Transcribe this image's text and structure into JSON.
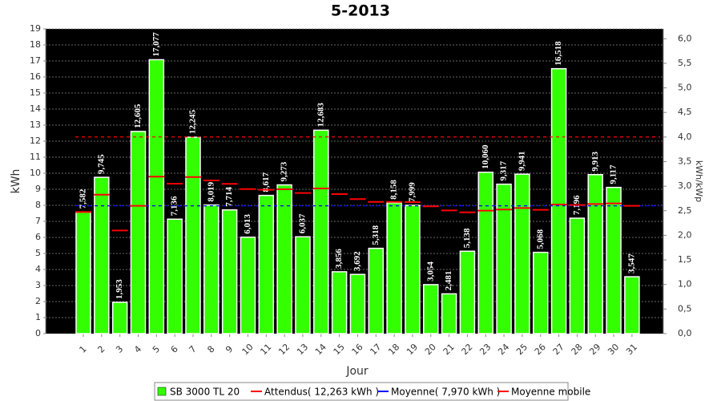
{
  "chart_data": {
    "type": "bar",
    "title": "5-2013",
    "x_label": "Jour",
    "y_label": "kWh",
    "y2_label": "kWh/kWp",
    "categories": [
      "1",
      "2",
      "3",
      "4",
      "5",
      "6",
      "7",
      "8",
      "9",
      "10",
      "11",
      "12",
      "13",
      "14",
      "15",
      "16",
      "17",
      "18",
      "19",
      "20",
      "21",
      "22",
      "23",
      "24",
      "25",
      "26",
      "27",
      "28",
      "29",
      "30",
      "31"
    ],
    "series": [
      {
        "name": "SB 3000 TL 20",
        "color": "#33ff00",
        "values": [
          7.582,
          9.745,
          1.953,
          12.605,
          17.077,
          7.136,
          12.245,
          8.019,
          7.714,
          6.013,
          8.617,
          9.273,
          6.037,
          12.683,
          3.856,
          3.692,
          5.318,
          8.158,
          7.999,
          3.054,
          2.481,
          5.138,
          10.06,
          9.317,
          9.941,
          5.068,
          16.518,
          7.196,
          9.913,
          9.117,
          3.547
        ],
        "value_labels": [
          "7,582",
          "9,745",
          "1,953",
          "12,605",
          "17,077",
          "7,136",
          "12,245",
          "8,019",
          "7,714",
          "6,013",
          "8,617",
          "9,273",
          "6,037",
          "12,683",
          "3,856",
          "3,692",
          "5,318",
          "8,158",
          "7,999",
          "3,054",
          "2,481",
          "5,138",
          "10,060",
          "9,317",
          "9,941",
          "5,068",
          "16,518",
          "7,196",
          "9,913",
          "9,117",
          "3,547"
        ]
      },
      {
        "name": "Attendus( 12,263 kWh )",
        "color": "#ff0000",
        "value": 12.263
      },
      {
        "name": "Moyenne( 7,970 kWh )",
        "color": "#0000ff",
        "value": 7.97
      },
      {
        "name": "Moyenne mobile",
        "color": "#ff0000",
        "values": [
          7.58,
          8.66,
          6.43,
          7.97,
          9.79,
          9.35,
          9.76,
          9.55,
          9.34,
          9.01,
          8.97,
          9.0,
          8.77,
          9.05,
          8.7,
          8.39,
          8.21,
          8.21,
          8.2,
          7.94,
          7.68,
          7.56,
          7.67,
          7.74,
          7.83,
          7.72,
          8.05,
          8.02,
          8.08,
          8.12,
          7.97
        ]
      }
    ],
    "ylim": [
      0,
      19
    ],
    "yticks": [
      0,
      1,
      2,
      3,
      4,
      5,
      6,
      7,
      8,
      9,
      10,
      11,
      12,
      13,
      14,
      15,
      16,
      17,
      18,
      19
    ],
    "y2lim": [
      0,
      6.2
    ],
    "y2ticks": [
      {
        "value": 0,
        "label": "0,0"
      },
      {
        "value": 0.5,
        "label": "0,5"
      },
      {
        "value": 1,
        "label": "1,0"
      },
      {
        "value": 1.5,
        "label": "1,5"
      },
      {
        "value": 2,
        "label": "2,0"
      },
      {
        "value": 2.5,
        "label": "2,5"
      },
      {
        "value": 3,
        "label": "3,0"
      },
      {
        "value": 3.5,
        "label": "3,5"
      },
      {
        "value": 4,
        "label": "4,0"
      },
      {
        "value": 4.5,
        "label": "4,5"
      },
      {
        "value": 5,
        "label": "5,0"
      },
      {
        "value": 5.5,
        "label": "5,5"
      },
      {
        "value": 6,
        "label": "6,0"
      }
    ],
    "grid": true,
    "legend": "bottom"
  }
}
